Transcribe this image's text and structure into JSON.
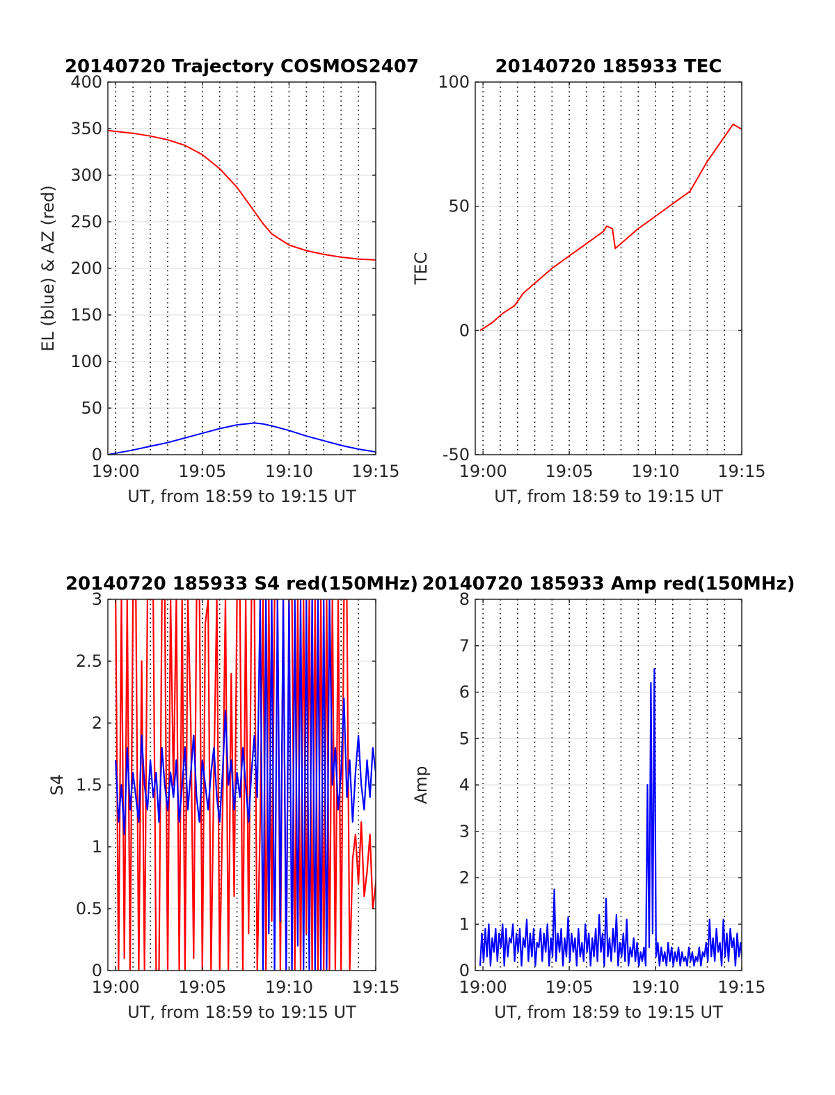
{
  "colors": {
    "red": "#ff0000",
    "blue": "#0000ff",
    "axis": "#262626",
    "grid": "#dcdcdc"
  },
  "x_tick_labels": [
    "19:00",
    "19:05",
    "19:10",
    "19:15"
  ],
  "chart_data": [
    {
      "type": "line",
      "title": "20140720 Trajectory COSMOS2407",
      "xlabel": "UT, from 18:59 to 19:15 UT",
      "ylabel": "EL (blue) & AZ (red)",
      "xlim": [
        "18:59:33",
        "19:15:00"
      ],
      "ylim": [
        0,
        400
      ],
      "yticks": [
        0,
        50,
        100,
        150,
        200,
        250,
        300,
        350,
        400
      ],
      "x": [
        "18:59:33",
        "19:01:00",
        "19:02:00",
        "19:03:00",
        "19:04:00",
        "19:05:00",
        "19:06:00",
        "19:07:00",
        "19:07:30",
        "19:08:00",
        "19:08:30",
        "19:09:00",
        "19:10:00",
        "19:11:00",
        "19:12:00",
        "19:13:00",
        "19:14:00",
        "19:15:00"
      ],
      "series": [
        {
          "color": "red",
          "values": [
            348,
            345,
            342,
            338,
            332,
            322,
            307,
            287,
            274,
            261,
            248,
            237,
            225,
            219,
            215,
            212,
            210,
            209
          ]
        },
        {
          "color": "blue",
          "values": [
            0,
            5,
            9,
            13,
            18,
            23,
            28,
            32,
            33,
            34,
            33,
            31,
            26,
            20,
            15,
            10,
            6,
            3
          ]
        }
      ],
      "grid": true
    },
    {
      "type": "line",
      "title": "20140720 185933 TEC",
      "xlabel": "UT, from 18:59 to 19:15 UT",
      "ylabel": "TEC",
      "xlim": [
        "18:59:33",
        "19:15:00"
      ],
      "ylim": [
        -50,
        100
      ],
      "yticks": [
        -50,
        0,
        50,
        100
      ],
      "x": [
        "18:59:50",
        "19:00:30",
        "19:01:10",
        "19:01:50",
        "19:02:20",
        "19:03:00",
        "19:04:00",
        "19:05:00",
        "19:06:00",
        "19:07:00",
        "19:07:10",
        "19:07:30",
        "19:07:40",
        "19:08:00",
        "19:09:00",
        "19:10:00",
        "19:11:00",
        "19:12:00",
        "19:13:00",
        "19:14:00",
        "19:14:30",
        "19:15:00"
      ],
      "series": [
        {
          "color": "red",
          "values": [
            0,
            3,
            7,
            10,
            15,
            19,
            25,
            30,
            35,
            40,
            42,
            41,
            33,
            35,
            41,
            46,
            51,
            56,
            68,
            78,
            83,
            81
          ]
        }
      ],
      "grid": true
    },
    {
      "type": "line",
      "title": "20140720 185933 S4 red(150MHz)",
      "xlabel": "UT, from 18:59 to 19:15 UT",
      "ylabel": "S4",
      "xlim": [
        "18:59:33",
        "19:15:00"
      ],
      "ylim": [
        0,
        3
      ],
      "yticks": [
        0,
        0.5,
        1,
        1.5,
        2,
        2.5,
        3
      ],
      "x_start": "19:00:00",
      "x_step_seconds": 10,
      "series": [
        {
          "color": "red",
          "values": [
            3,
            0,
            3,
            0.1,
            3,
            0,
            3,
            3,
            0,
            2.5,
            0,
            3,
            3,
            3,
            0,
            0,
            3,
            3,
            0,
            3,
            1.5,
            3,
            0,
            3,
            0,
            3,
            2,
            0.1,
            3,
            3,
            0,
            2.8,
            3,
            0,
            1.6,
            3,
            0,
            1.3,
            3,
            0,
            2.4,
            0.6,
            3,
            3,
            0,
            3,
            0.3,
            3,
            3,
            0,
            1.2,
            3,
            0,
            3,
            0.4,
            3,
            3,
            0,
            3,
            0,
            3,
            3,
            0,
            3,
            0,
            3,
            0.3,
            3,
            0,
            3,
            0,
            3,
            0,
            3,
            0,
            3,
            0,
            3,
            0,
            3,
            3,
            0,
            0.9,
            1.1,
            0.7,
            1.2,
            0.6,
            0.8,
            1.1,
            0.5,
            0.7,
            1.0,
            0.6,
            0.9,
            1.3,
            0.6,
            0.8,
            1.0
          ]
        },
        {
          "color": "blue",
          "values": [
            1.7,
            1.2,
            1.5,
            1.1,
            1.8,
            1.3,
            1.6,
            1.4,
            1.2,
            1.9,
            1.5,
            1.3,
            1.7,
            1.4,
            1.6,
            1.2,
            1.8,
            1.5,
            1.3,
            1.6,
            1.4,
            1.7,
            1.2,
            1.5,
            1.8,
            1.3,
            1.6,
            1.9,
            1.4,
            1.2,
            1.7,
            1.5,
            1.3,
            1.6,
            1.8,
            1.4,
            1.2,
            1.6,
            2.1,
            1.5,
            1.7,
            1.3,
            1.6,
            1.4,
            1.8,
            1.5,
            1.2,
            1.6,
            1.9,
            1.4,
            3,
            0,
            3,
            0.3,
            3,
            0,
            3,
            0.4,
            3,
            0,
            3,
            0,
            3,
            0.2,
            3,
            0,
            3,
            0,
            3,
            0,
            3,
            0,
            3,
            0,
            3,
            1.5,
            1.8,
            1.3,
            1.6,
            2.2,
            1.4,
            1.7,
            1.2,
            1.6,
            1.9,
            1.5,
            1.3,
            1.7,
            1.4,
            1.8,
            1.6,
            0.2,
            2.0,
            3,
            0.1,
            3,
            1.0
          ]
        }
      ],
      "grid": true
    },
    {
      "type": "line",
      "title": "20140720 185933 Amp red(150MHz)",
      "xlabel": "UT, from 18:59 to 19:15 UT",
      "ylabel": "Amp",
      "xlim": [
        "18:59:33",
        "19:15:00"
      ],
      "ylim": [
        0,
        8
      ],
      "yticks": [
        0,
        1,
        2,
        3,
        4,
        5,
        6,
        7,
        8
      ],
      "x_start": "18:59:50",
      "x_step_seconds": 6,
      "series": [
        {
          "color": "blue",
          "values": [
            0.1,
            0.8,
            0.2,
            0.9,
            0.3,
            1.0,
            0.1,
            0.7,
            0.4,
            0.9,
            0.2,
            0.8,
            0.5,
            1.0,
            0.1,
            0.9,
            0.3,
            0.7,
            0.6,
            1.0,
            0.2,
            0.8,
            0.4,
            0.9,
            0.1,
            0.7,
            0.5,
            1.1,
            0.2,
            0.8,
            0.3,
            0.9,
            0.1,
            0.6,
            0.5,
            0.9,
            0.2,
            0.8,
            0.4,
            1.0,
            0.1,
            0.7,
            0.3,
            1.75,
            0.2,
            0.8,
            0.4,
            0.9,
            0.1,
            0.7,
            0.3,
            1.15,
            0.2,
            0.8,
            0.4,
            0.7,
            0.1,
            0.9,
            0.3,
            0.6,
            0.2,
            1.0,
            0.4,
            0.8,
            0.1,
            0.7,
            0.3,
            0.9,
            0.2,
            1.2,
            0.4,
            0.8,
            0.1,
            1.55,
            0.3,
            0.7,
            0.2,
            0.9,
            0.4,
            1.2,
            0.1,
            0.6,
            0.3,
            0.8,
            0.2,
            1.1,
            0.1,
            0.5,
            0.3,
            0.7,
            0.2,
            0.6,
            0.1,
            0.4,
            0.2,
            0.5,
            0.1,
            4.0,
            0.5,
            6.2,
            0.8,
            6.5,
            0.3,
            0.6,
            0.1,
            0.5,
            0.2,
            0.4,
            0.1,
            0.6,
            0.2,
            0.5,
            0.1,
            0.4,
            0.2,
            0.5,
            0.1,
            0.4,
            0.2,
            0.3,
            0.1,
            0.5,
            0.2,
            0.4,
            0.1,
            0.3,
            0.2,
            0.5,
            0.1,
            0.4,
            0.3,
            0.6,
            0.2,
            1.1,
            0.3,
            0.7,
            0.2,
            0.9,
            0.4,
            0.6,
            0.1,
            1.1,
            0.3,
            0.8,
            0.2,
            0.9,
            0.5,
            0.7,
            0.1,
            0.8,
            0.3,
            0.6,
            0.2,
            0.9,
            0.4,
            0.7,
            0.1,
            0.5,
            0.3,
            0.4
          ]
        }
      ],
      "grid": true
    }
  ]
}
